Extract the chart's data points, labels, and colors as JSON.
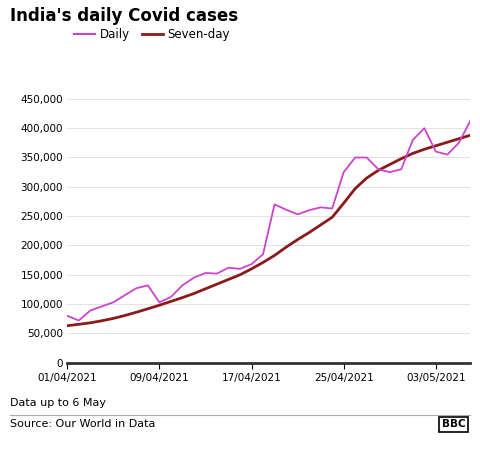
{
  "title": "India's daily Covid cases",
  "legend_daily": "Daily",
  "legend_seven": "Seven-day",
  "subtitle": "Data up to 6 May",
  "source": "Source: Our World in Data",
  "bbc_label": "BBC",
  "daily_color": "#cc44cc",
  "seven_color": "#8b1a1a",
  "ylim": [
    0,
    460000
  ],
  "yticks": [
    0,
    50000,
    100000,
    150000,
    200000,
    250000,
    300000,
    350000,
    400000,
    450000
  ],
  "xtick_labels": [
    "01/04/2021",
    "09/04/2021",
    "17/04/2021",
    "25/04/2021",
    "03/05/2021"
  ],
  "xtick_positions": [
    0,
    8,
    16,
    24,
    32
  ],
  "daily_x": [
    0,
    1,
    2,
    3,
    4,
    5,
    6,
    7,
    8,
    9,
    10,
    11,
    12,
    13,
    14,
    15,
    16,
    17,
    18,
    19,
    20,
    21,
    22,
    23,
    24,
    25,
    26,
    27,
    28,
    29,
    30,
    31,
    32,
    33,
    34,
    35
  ],
  "daily_y": [
    80000,
    72000,
    89000,
    96000,
    103000,
    115000,
    127000,
    132000,
    103000,
    112000,
    132000,
    145000,
    153000,
    152000,
    162000,
    160000,
    168000,
    185000,
    270000,
    261000,
    253000,
    260000,
    265000,
    263000,
    325000,
    350000,
    350000,
    330000,
    325000,
    330000,
    380000,
    400000,
    360000,
    355000,
    375000,
    413000
  ],
  "seven_y": [
    63000,
    65500,
    68000,
    71500,
    75500,
    80500,
    86000,
    92000,
    98000,
    104500,
    111000,
    118000,
    126000,
    134000,
    142000,
    150000,
    160000,
    171000,
    183000,
    197000,
    210000,
    222000,
    235000,
    248000,
    272000,
    297000,
    315000,
    328000,
    338000,
    348000,
    357000,
    364000,
    370000,
    376000,
    382000,
    388000
  ]
}
